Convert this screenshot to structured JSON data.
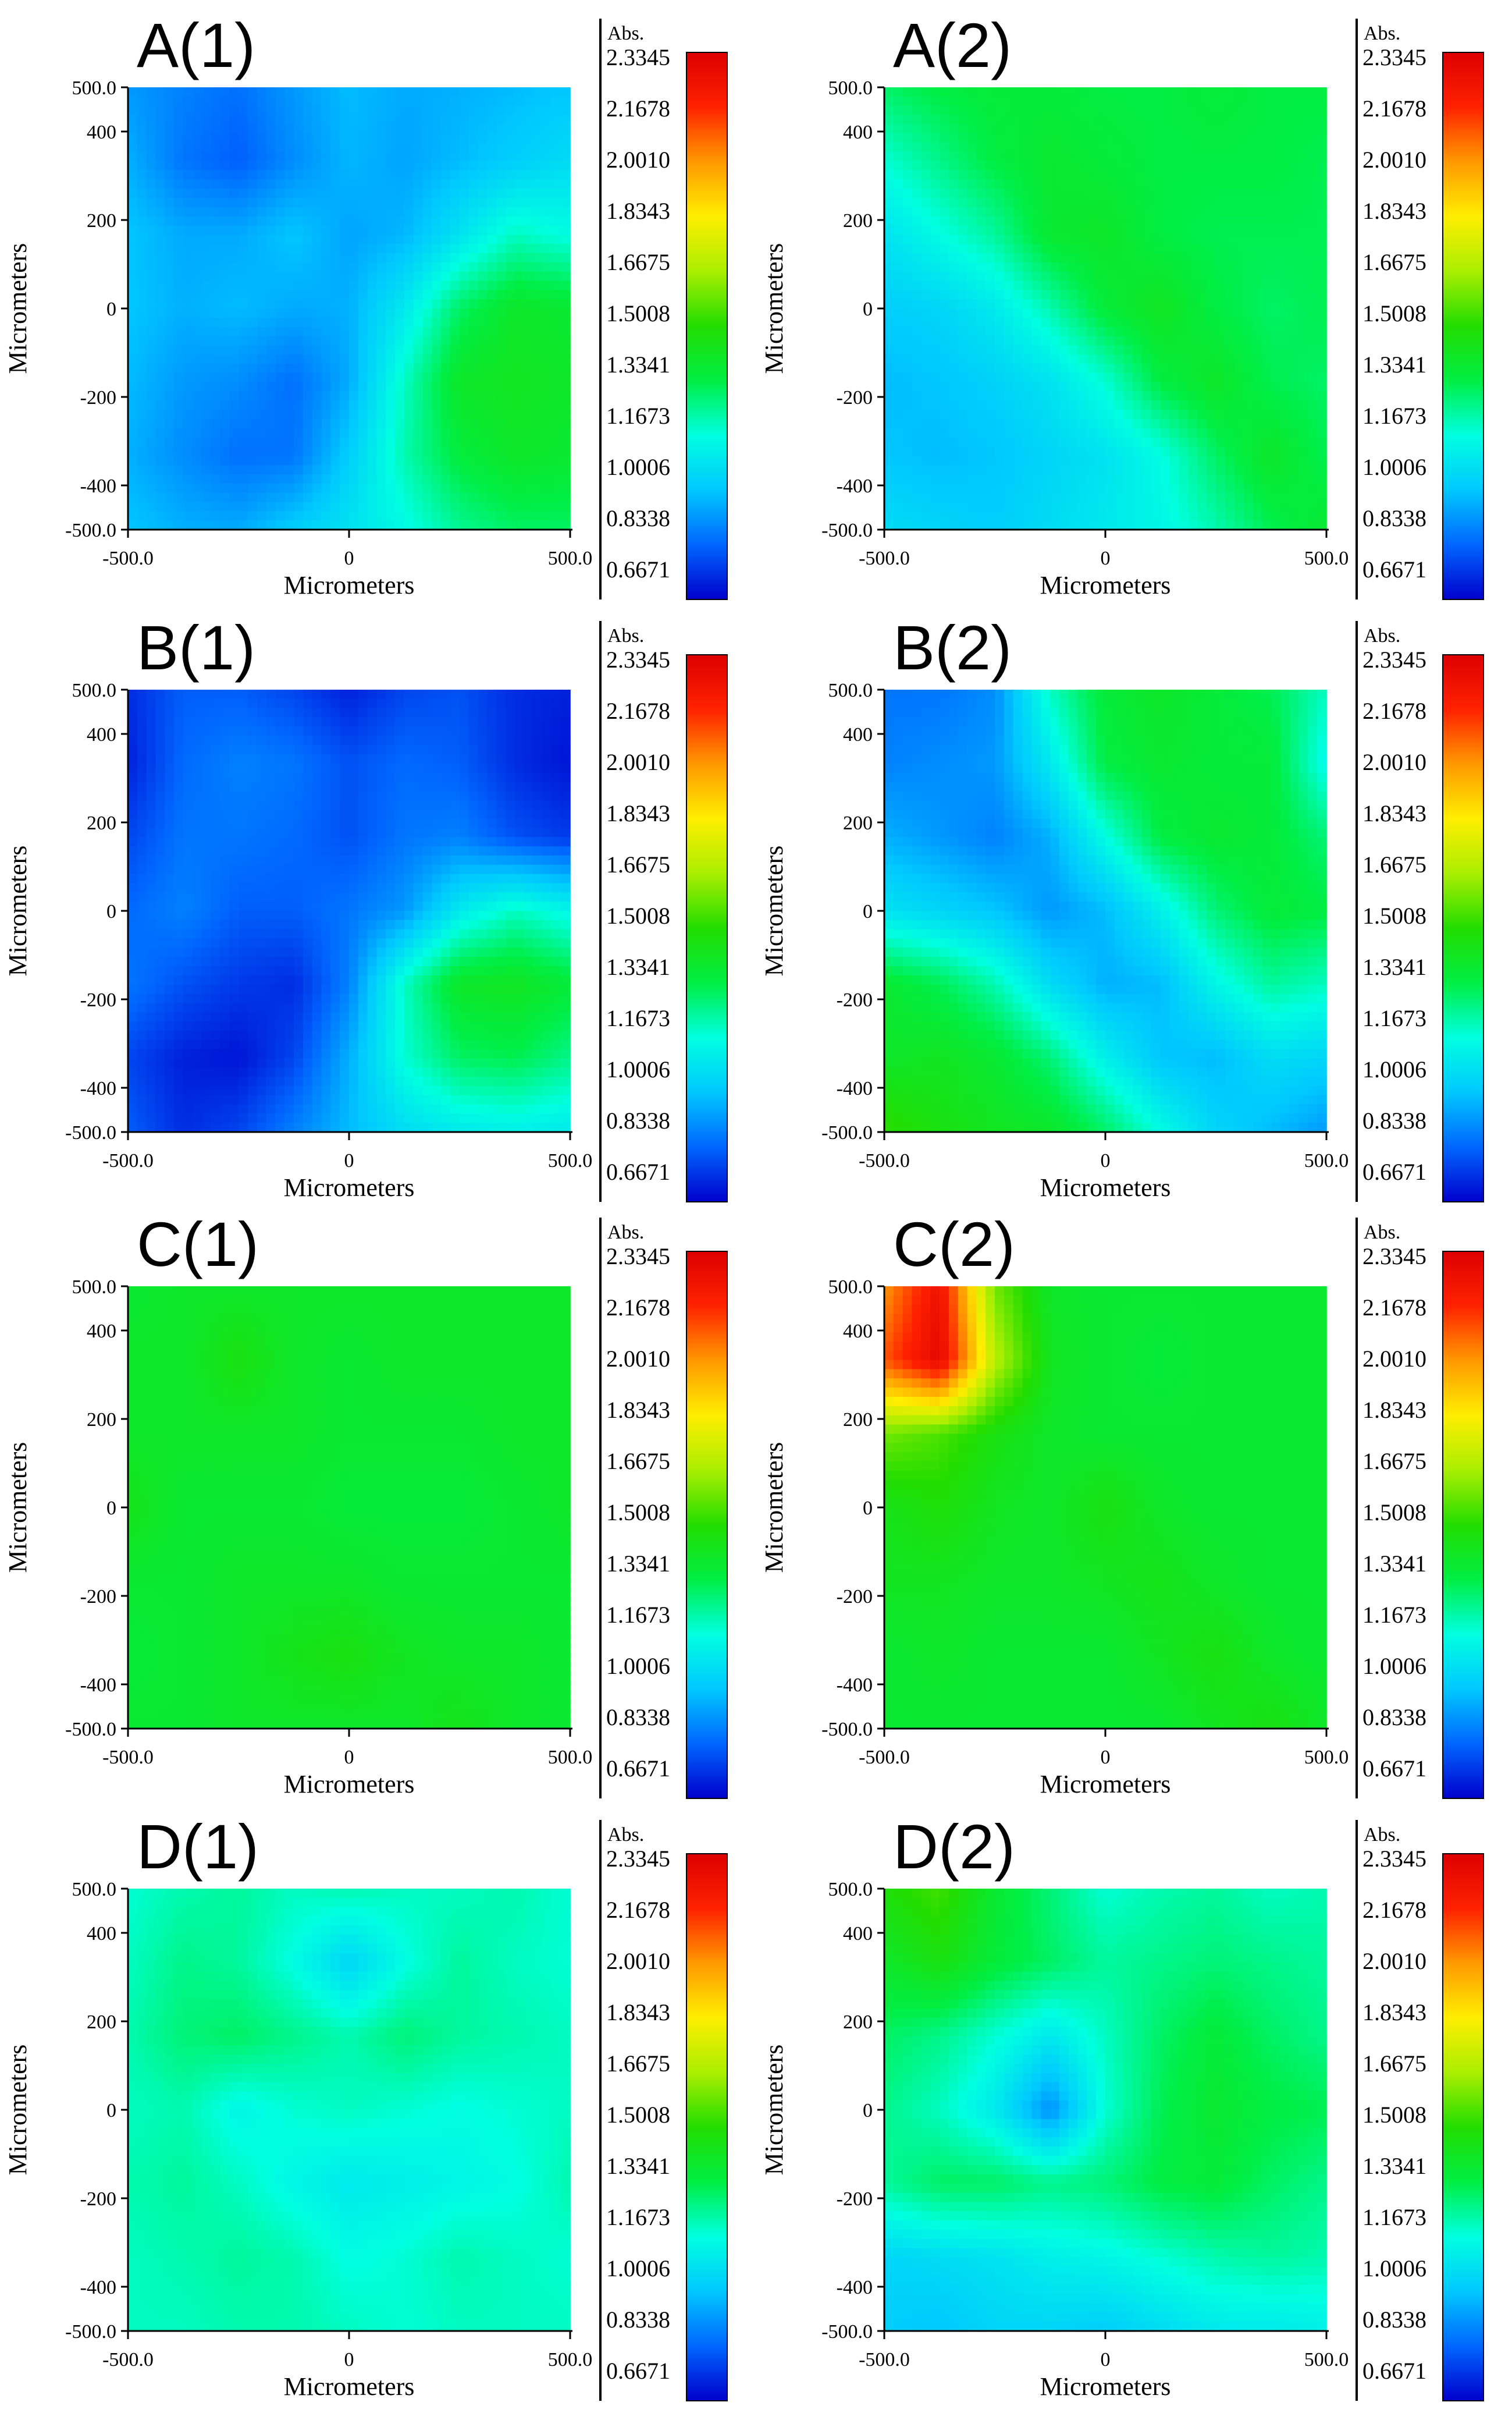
{
  "chart_data": [
    {
      "type": "heatmap",
      "title": "A(1)",
      "xlabel": "Micrometers",
      "ylabel": "Micrometers",
      "xlim": [
        -500,
        500
      ],
      "ylim": [
        -500,
        500
      ],
      "x_ticks": [
        "-500.0",
        "0",
        "500.0"
      ],
      "y_ticks": [
        "500.0",
        "400",
        "200",
        "0",
        "-200",
        "-400",
        "-500.0"
      ],
      "z_grid": [
        [
          0.92,
          0.88,
          0.85,
          0.92,
          0.98,
          0.95,
          0.96,
          0.98,
          1.0
        ],
        [
          0.96,
          0.86,
          0.82,
          0.9,
          0.97,
          0.94,
          0.98,
          1.02,
          1.06
        ],
        [
          1.0,
          0.95,
          0.95,
          1.0,
          0.94,
          0.97,
          1.08,
          1.2,
          1.16
        ],
        [
          1.0,
          0.96,
          0.98,
          0.95,
          0.96,
          1.1,
          1.3,
          1.4,
          1.38
        ],
        [
          0.98,
          0.92,
          0.9,
          0.85,
          0.95,
          1.2,
          1.4,
          1.42,
          1.4
        ],
        [
          0.96,
          0.9,
          0.85,
          0.86,
          1.02,
          1.22,
          1.35,
          1.4,
          1.38
        ],
        [
          1.0,
          0.96,
          0.95,
          1.02,
          1.08,
          1.15,
          1.25,
          1.3,
          1.3
        ]
      ],
      "colorbar_title": "Abs.",
      "colorbar_ticks": [
        "2.3345",
        "2.1678",
        "2.0010",
        "1.8343",
        "1.6675",
        "1.5008",
        "1.3341",
        "1.1673",
        "1.0006",
        "0.8338",
        "0.6671"
      ],
      "zlim": [
        0.6671,
        2.3345
      ]
    },
    {
      "type": "heatmap",
      "title": "A(2)",
      "xlabel": "Micrometers",
      "ylabel": "Micrometers",
      "xlim": [
        -500,
        500
      ],
      "ylim": [
        -500,
        500
      ],
      "x_ticks": [
        "-500.0",
        "0",
        "500.0"
      ],
      "y_ticks": [
        "500.0",
        "400",
        "200",
        "0",
        "-200",
        "-400",
        "-500.0"
      ],
      "z_grid": [
        [
          1.3,
          1.34,
          1.36,
          1.36,
          1.34,
          1.34,
          1.36,
          1.34,
          1.34
        ],
        [
          1.18,
          1.26,
          1.34,
          1.38,
          1.36,
          1.34,
          1.34,
          1.34,
          1.32
        ],
        [
          1.08,
          1.16,
          1.24,
          1.38,
          1.4,
          1.34,
          1.32,
          1.32,
          1.32
        ],
        [
          1.02,
          1.04,
          1.1,
          1.22,
          1.36,
          1.42,
          1.34,
          1.3,
          1.32
        ],
        [
          0.98,
          1.0,
          1.03,
          1.08,
          1.18,
          1.34,
          1.4,
          1.32,
          1.3
        ],
        [
          1.0,
          0.98,
          1.0,
          1.04,
          1.08,
          1.16,
          1.3,
          1.4,
          1.32
        ],
        [
          1.06,
          1.04,
          1.02,
          1.06,
          1.1,
          1.14,
          1.22,
          1.32,
          1.38
        ]
      ],
      "colorbar_title": "Abs.",
      "colorbar_ticks": [
        "2.3345",
        "2.1678",
        "2.0010",
        "1.8343",
        "1.6675",
        "1.5008",
        "1.3341",
        "1.1673",
        "1.0006",
        "0.8338",
        "0.6671"
      ],
      "zlim": [
        0.6671,
        2.3345
      ]
    },
    {
      "type": "heatmap",
      "title": "B(1)",
      "xlabel": "Micrometers",
      "ylabel": "Micrometers",
      "xlim": [
        -500,
        500
      ],
      "ylim": [
        -500,
        500
      ],
      "x_ticks": [
        "-500.0",
        "0",
        "500.0"
      ],
      "y_ticks": [
        "500.0",
        "400",
        "200",
        "0",
        "-200",
        "-400",
        "-500.0"
      ],
      "z_grid": [
        [
          0.74,
          0.82,
          0.82,
          0.78,
          0.72,
          0.78,
          0.8,
          0.74,
          0.72
        ],
        [
          0.72,
          0.84,
          0.88,
          0.86,
          0.8,
          0.84,
          0.82,
          0.74,
          0.7
        ],
        [
          0.78,
          0.86,
          0.86,
          0.84,
          0.8,
          0.86,
          0.88,
          0.8,
          0.76
        ],
        [
          0.84,
          0.88,
          0.82,
          0.82,
          0.86,
          0.92,
          1.1,
          1.2,
          1.14
        ],
        [
          0.86,
          0.8,
          0.76,
          0.74,
          0.88,
          1.2,
          1.4,
          1.42,
          1.36
        ],
        [
          0.78,
          0.72,
          0.7,
          0.78,
          0.96,
          1.18,
          1.3,
          1.32,
          1.26
        ],
        [
          0.82,
          0.74,
          0.78,
          0.88,
          0.98,
          1.06,
          1.1,
          1.12,
          1.1
        ]
      ],
      "colorbar_title": "Abs.",
      "colorbar_ticks": [
        "2.3345",
        "2.1678",
        "2.0010",
        "1.8343",
        "1.6675",
        "1.5008",
        "1.3341",
        "1.1673",
        "1.0006",
        "0.8338",
        "0.6671"
      ],
      "zlim": [
        0.6671,
        2.3345
      ]
    },
    {
      "type": "heatmap",
      "title": "B(2)",
      "xlabel": "Micrometers",
      "ylabel": "Micrometers",
      "xlim": [
        -500,
        500
      ],
      "ylim": [
        -500,
        500
      ],
      "x_ticks": [
        "-500.0",
        "0",
        "500.0"
      ],
      "y_ticks": [
        "500.0",
        "400",
        "200",
        "0",
        "-200",
        "-400",
        "-500.0"
      ],
      "z_grid": [
        [
          0.86,
          0.86,
          0.9,
          1.2,
          1.36,
          1.4,
          1.36,
          1.32,
          1.2
        ],
        [
          0.88,
          0.9,
          0.92,
          1.1,
          1.34,
          1.38,
          1.36,
          1.36,
          1.14
        ],
        [
          0.96,
          0.92,
          0.88,
          0.96,
          1.16,
          1.34,
          1.38,
          1.36,
          1.28
        ],
        [
          1.08,
          1.04,
          1.0,
          0.92,
          0.98,
          1.12,
          1.28,
          1.36,
          1.34
        ],
        [
          1.38,
          1.32,
          1.22,
          1.06,
          0.96,
          0.98,
          1.14,
          1.24,
          1.2
        ],
        [
          1.4,
          1.42,
          1.38,
          1.28,
          1.12,
          1.0,
          0.98,
          1.06,
          1.04
        ],
        [
          1.52,
          1.46,
          1.42,
          1.4,
          1.3,
          1.16,
          1.04,
          0.98,
          0.92
        ]
      ],
      "colorbar_title": "Abs.",
      "colorbar_ticks": [
        "2.3345",
        "2.1678",
        "2.0010",
        "1.8343",
        "1.6675",
        "1.5008",
        "1.3341",
        "1.1673",
        "1.0006",
        "0.8338",
        "0.6671"
      ],
      "zlim": [
        0.6671,
        2.3345
      ]
    },
    {
      "type": "heatmap",
      "title": "C(1)",
      "xlabel": "Micrometers",
      "ylabel": "Micrometers",
      "xlim": [
        -500,
        500
      ],
      "ylim": [
        -500,
        500
      ],
      "x_ticks": [
        "-500.0",
        "0",
        "500.0"
      ],
      "y_ticks": [
        "500.0",
        "400",
        "200",
        "0",
        "-200",
        "-400",
        "-500.0"
      ],
      "z_grid": [
        [
          1.38,
          1.4,
          1.4,
          1.4,
          1.4,
          1.4,
          1.4,
          1.4,
          1.4
        ],
        [
          1.4,
          1.4,
          1.46,
          1.4,
          1.38,
          1.4,
          1.4,
          1.4,
          1.4
        ],
        [
          1.4,
          1.4,
          1.4,
          1.4,
          1.38,
          1.38,
          1.38,
          1.4,
          1.4
        ],
        [
          1.44,
          1.38,
          1.38,
          1.38,
          1.36,
          1.36,
          1.36,
          1.38,
          1.4
        ],
        [
          1.38,
          1.38,
          1.4,
          1.4,
          1.4,
          1.38,
          1.38,
          1.38,
          1.38
        ],
        [
          1.36,
          1.38,
          1.4,
          1.44,
          1.46,
          1.42,
          1.4,
          1.4,
          1.38
        ],
        [
          1.38,
          1.38,
          1.4,
          1.4,
          1.4,
          1.4,
          1.44,
          1.4,
          1.38
        ]
      ],
      "colorbar_title": "Abs.",
      "colorbar_ticks": [
        "2.3345",
        "2.1678",
        "2.0010",
        "1.8343",
        "1.6675",
        "1.5008",
        "1.3341",
        "1.1673",
        "1.0006",
        "0.8338",
        "0.6671"
      ],
      "zlim": [
        0.6671,
        2.3345
      ]
    },
    {
      "type": "heatmap",
      "title": "C(2)",
      "xlabel": "Micrometers",
      "ylabel": "Micrometers",
      "xlim": [
        -500,
        500
      ],
      "ylim": [
        -500,
        500
      ],
      "x_ticks": [
        "-500.0",
        "0",
        "500.0"
      ],
      "y_ticks": [
        "500.0",
        "400",
        "200",
        "0",
        "-200",
        "-400",
        "-500.0"
      ],
      "z_grid": [
        [
          2.0,
          2.25,
          1.6,
          1.4,
          1.38,
          1.38,
          1.38,
          1.38,
          1.38
        ],
        [
          2.1,
          2.3,
          1.7,
          1.42,
          1.38,
          1.36,
          1.38,
          1.38,
          1.38
        ],
        [
          1.6,
          1.55,
          1.46,
          1.4,
          1.38,
          1.38,
          1.38,
          1.38,
          1.38
        ],
        [
          1.44,
          1.48,
          1.42,
          1.4,
          1.46,
          1.4,
          1.38,
          1.38,
          1.38
        ],
        [
          1.42,
          1.42,
          1.4,
          1.4,
          1.42,
          1.44,
          1.4,
          1.38,
          1.38
        ],
        [
          1.38,
          1.4,
          1.38,
          1.38,
          1.38,
          1.42,
          1.46,
          1.4,
          1.38
        ],
        [
          1.38,
          1.38,
          1.38,
          1.38,
          1.38,
          1.38,
          1.42,
          1.46,
          1.4
        ]
      ],
      "colorbar_title": "Abs.",
      "colorbar_ticks": [
        "2.3345",
        "2.1678",
        "2.0010",
        "1.8343",
        "1.6675",
        "1.5008",
        "1.3341",
        "1.1673",
        "1.0006",
        "0.8338",
        "0.6671"
      ],
      "zlim": [
        0.6671,
        2.3345
      ]
    },
    {
      "type": "heatmap",
      "title": "D(1)",
      "xlabel": "Micrometers",
      "ylabel": "Micrometers",
      "xlim": [
        -500,
        500
      ],
      "ylim": [
        -500,
        500
      ],
      "x_ticks": [
        "-500.0",
        "0",
        "500.0"
      ],
      "y_ticks": [
        "500.0",
        "400",
        "200",
        "0",
        "-200",
        "-400",
        "-500.0"
      ],
      "z_grid": [
        [
          1.18,
          1.22,
          1.24,
          1.2,
          1.22,
          1.2,
          1.2,
          1.22,
          1.18
        ],
        [
          1.2,
          1.26,
          1.24,
          1.16,
          1.04,
          1.16,
          1.24,
          1.2,
          1.18
        ],
        [
          1.22,
          1.28,
          1.3,
          1.26,
          1.22,
          1.28,
          1.24,
          1.22,
          1.2
        ],
        [
          1.2,
          1.22,
          1.14,
          1.18,
          1.2,
          1.18,
          1.16,
          1.18,
          1.2
        ],
        [
          1.22,
          1.24,
          1.2,
          1.14,
          1.1,
          1.12,
          1.14,
          1.16,
          1.22
        ],
        [
          1.2,
          1.22,
          1.24,
          1.22,
          1.16,
          1.18,
          1.22,
          1.2,
          1.18
        ],
        [
          1.2,
          1.2,
          1.22,
          1.22,
          1.2,
          1.18,
          1.2,
          1.2,
          1.2
        ]
      ],
      "colorbar_title": "Abs.",
      "colorbar_ticks": [
        "2.3345",
        "2.1678",
        "2.0010",
        "1.8343",
        "1.6675",
        "1.5008",
        "1.3341",
        "1.1673",
        "1.0006",
        "0.8338",
        "0.6671"
      ],
      "zlim": [
        0.6671,
        2.3345
      ]
    },
    {
      "type": "heatmap",
      "title": "D(2)",
      "xlabel": "Micrometers",
      "ylabel": "Micrometers",
      "xlim": [
        -500,
        500
      ],
      "ylim": [
        -500,
        500
      ],
      "x_ticks": [
        "-500.0",
        "0",
        "500.0"
      ],
      "y_ticks": [
        "500.0",
        "400",
        "200",
        "0",
        "-200",
        "-400",
        "-500.0"
      ],
      "z_grid": [
        [
          1.48,
          1.54,
          1.38,
          1.28,
          1.18,
          1.22,
          1.24,
          1.2,
          1.22
        ],
        [
          1.4,
          1.46,
          1.36,
          1.3,
          1.24,
          1.26,
          1.28,
          1.26,
          1.24
        ],
        [
          1.3,
          1.26,
          1.18,
          1.1,
          1.2,
          1.3,
          1.36,
          1.3,
          1.26
        ],
        [
          1.26,
          1.2,
          1.1,
          0.9,
          1.18,
          1.32,
          1.38,
          1.34,
          1.32
        ],
        [
          1.24,
          1.3,
          1.3,
          1.26,
          1.28,
          1.34,
          1.36,
          1.3,
          1.26
        ],
        [
          1.04,
          1.06,
          1.08,
          1.12,
          1.14,
          1.18,
          1.22,
          1.24,
          1.22
        ],
        [
          1.02,
          1.0,
          1.04,
          1.04,
          1.02,
          1.06,
          1.1,
          1.1,
          1.12
        ]
      ],
      "colorbar_title": "Abs.",
      "colorbar_ticks": [
        "2.3345",
        "2.1678",
        "2.0010",
        "1.8343",
        "1.6675",
        "1.5008",
        "1.3341",
        "1.1673",
        "1.0006",
        "0.8338",
        "0.6671"
      ],
      "zlim": [
        0.6671,
        2.3345
      ]
    }
  ],
  "colors": {
    "colormap": [
      "#0000cc",
      "#0066ff",
      "#00c8ff",
      "#00ffe0",
      "#00ee44",
      "#22dd00",
      "#aaee00",
      "#ffee00",
      "#ff9900",
      "#ff2200",
      "#dd0000"
    ],
    "axis": "#000000",
    "background": "#ffffff"
  }
}
